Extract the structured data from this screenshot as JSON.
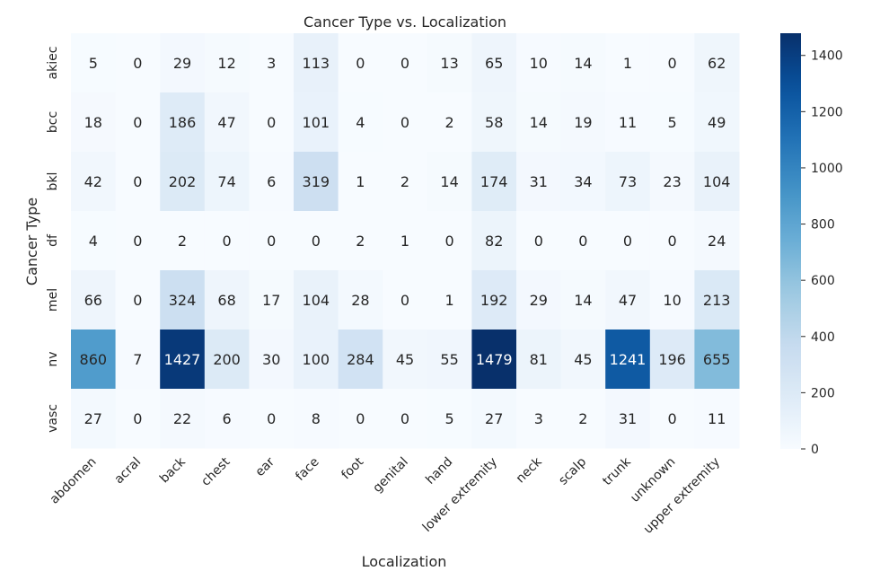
{
  "chart_data": {
    "type": "heatmap",
    "title": "Cancer Type vs. Localization",
    "xlabel": "Localization",
    "ylabel": "Cancer Type",
    "x_categories": [
      "abdomen",
      "acral",
      "back",
      "chest",
      "ear",
      "face",
      "foot",
      "genital",
      "hand",
      "lower extremity",
      "neck",
      "scalp",
      "trunk",
      "unknown",
      "upper extremity"
    ],
    "y_categories": [
      "akiec",
      "bcc",
      "bkl",
      "df",
      "mel",
      "nv",
      "vasc"
    ],
    "values": [
      [
        5,
        0,
        29,
        12,
        3,
        113,
        0,
        0,
        13,
        65,
        10,
        14,
        1,
        0,
        62
      ],
      [
        18,
        0,
        186,
        47,
        0,
        101,
        4,
        0,
        2,
        58,
        14,
        19,
        11,
        5,
        49
      ],
      [
        42,
        0,
        202,
        74,
        6,
        319,
        1,
        2,
        14,
        174,
        31,
        34,
        73,
        23,
        104
      ],
      [
        4,
        0,
        2,
        0,
        0,
        0,
        2,
        1,
        0,
        82,
        0,
        0,
        0,
        0,
        24
      ],
      [
        66,
        0,
        324,
        68,
        17,
        104,
        28,
        0,
        1,
        192,
        29,
        14,
        47,
        10,
        213
      ],
      [
        860,
        7,
        1427,
        200,
        30,
        100,
        284,
        45,
        55,
        1479,
        81,
        45,
        1241,
        196,
        655
      ],
      [
        27,
        0,
        22,
        6,
        0,
        8,
        0,
        0,
        5,
        27,
        3,
        2,
        31,
        0,
        11
      ]
    ],
    "colorbar": {
      "min": 0,
      "max": 1479,
      "ticks": [
        0,
        200,
        400,
        600,
        800,
        1000,
        1200,
        1400
      ],
      "colormap": "Blues"
    },
    "grid": false,
    "annotations": "cell values"
  }
}
